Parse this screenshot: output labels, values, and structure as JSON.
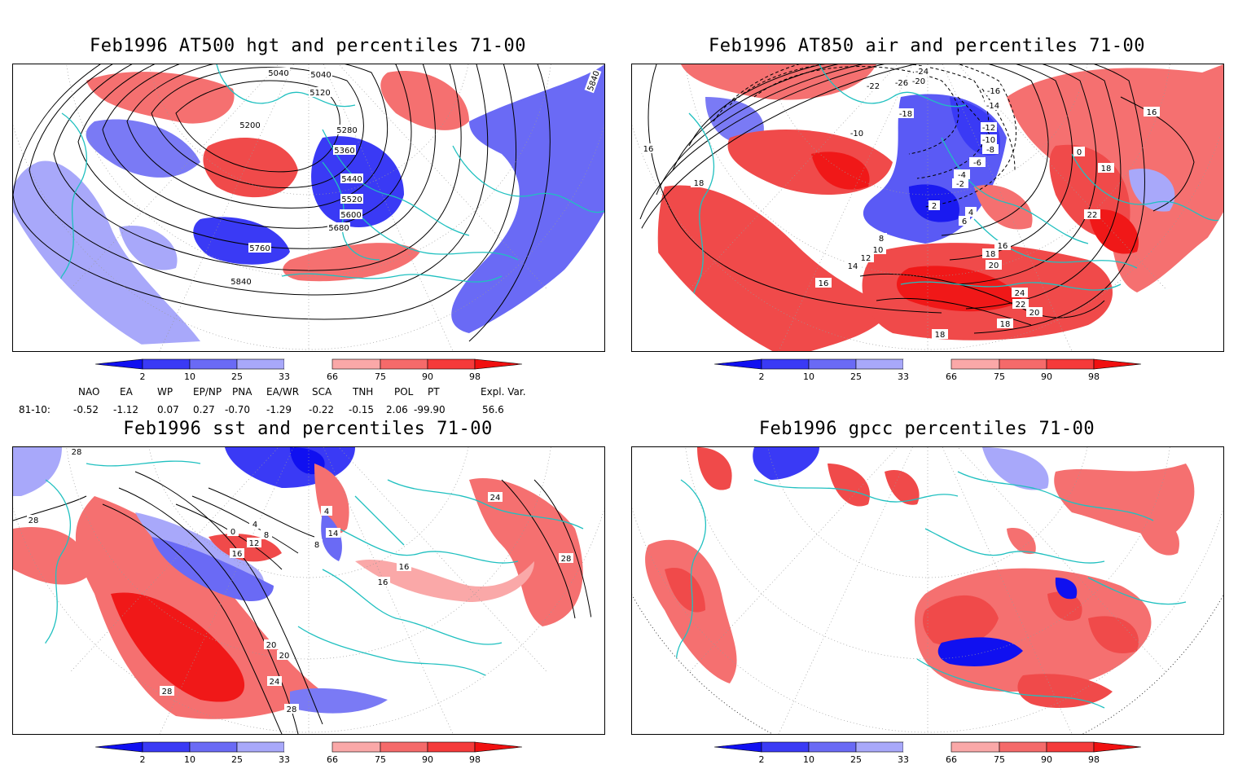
{
  "panels": [
    {
      "title": "Feb1996 AT500 hgt and percentiles 71-00",
      "contour_labels": [
        "5040",
        "5040",
        "5120",
        "5200",
        "5280",
        "5360",
        "5440",
        "5520",
        "5600",
        "5680",
        "5760",
        "5840",
        "5840"
      ]
    },
    {
      "title": "Feb1996 AT850 air and percentiles 71-00",
      "contour_labels": [
        "-22",
        "-24",
        "-26",
        "-20",
        "-16",
        "-14",
        "-18",
        "-10",
        "-12",
        "-10",
        "-8",
        "-6",
        "-4",
        "-2",
        "2",
        "4",
        "6",
        "8",
        "10",
        "12",
        "14",
        "16",
        "16",
        "18",
        "18",
        "16",
        "18",
        "20",
        "22",
        "24",
        "22",
        "20",
        "18",
        "18",
        "0",
        "16"
      ]
    },
    {
      "title": "Feb1996 sst and percentiles 71-00",
      "contour_labels": [
        "28",
        "28",
        "0",
        "4",
        "8",
        "12",
        "16",
        "4",
        "8",
        "14",
        "16",
        "16",
        "20",
        "20",
        "24",
        "28",
        "28",
        "24",
        "28"
      ]
    },
    {
      "title": "Feb1996 gpcc percentiles 71-00",
      "contour_labels": []
    }
  ],
  "colorbar": {
    "labels": [
      "2",
      "10",
      "25",
      "33",
      "66",
      "75",
      "90",
      "98"
    ],
    "colors": [
      "#1010f0",
      "#3a3af5",
      "#6a6af5",
      "#a8a8fa",
      "#ffffff",
      "#faa8a8",
      "#f56a6a",
      "#f53a3a",
      "#f01010"
    ]
  },
  "indices": {
    "headers": [
      "NAO",
      "EA",
      "WP",
      "EP/NP",
      "PNA",
      "EA/WR",
      "SCA",
      "TNH",
      "POL",
      "PT",
      "Expl. Var."
    ],
    "row_label": "81-10:",
    "values": [
      "-0.52",
      "-1.12",
      "0.07",
      "0.27",
      "-0.70",
      "-1.29",
      "-0.22",
      "-0.15",
      "2.06",
      "-99.90",
      "56.6"
    ]
  }
}
